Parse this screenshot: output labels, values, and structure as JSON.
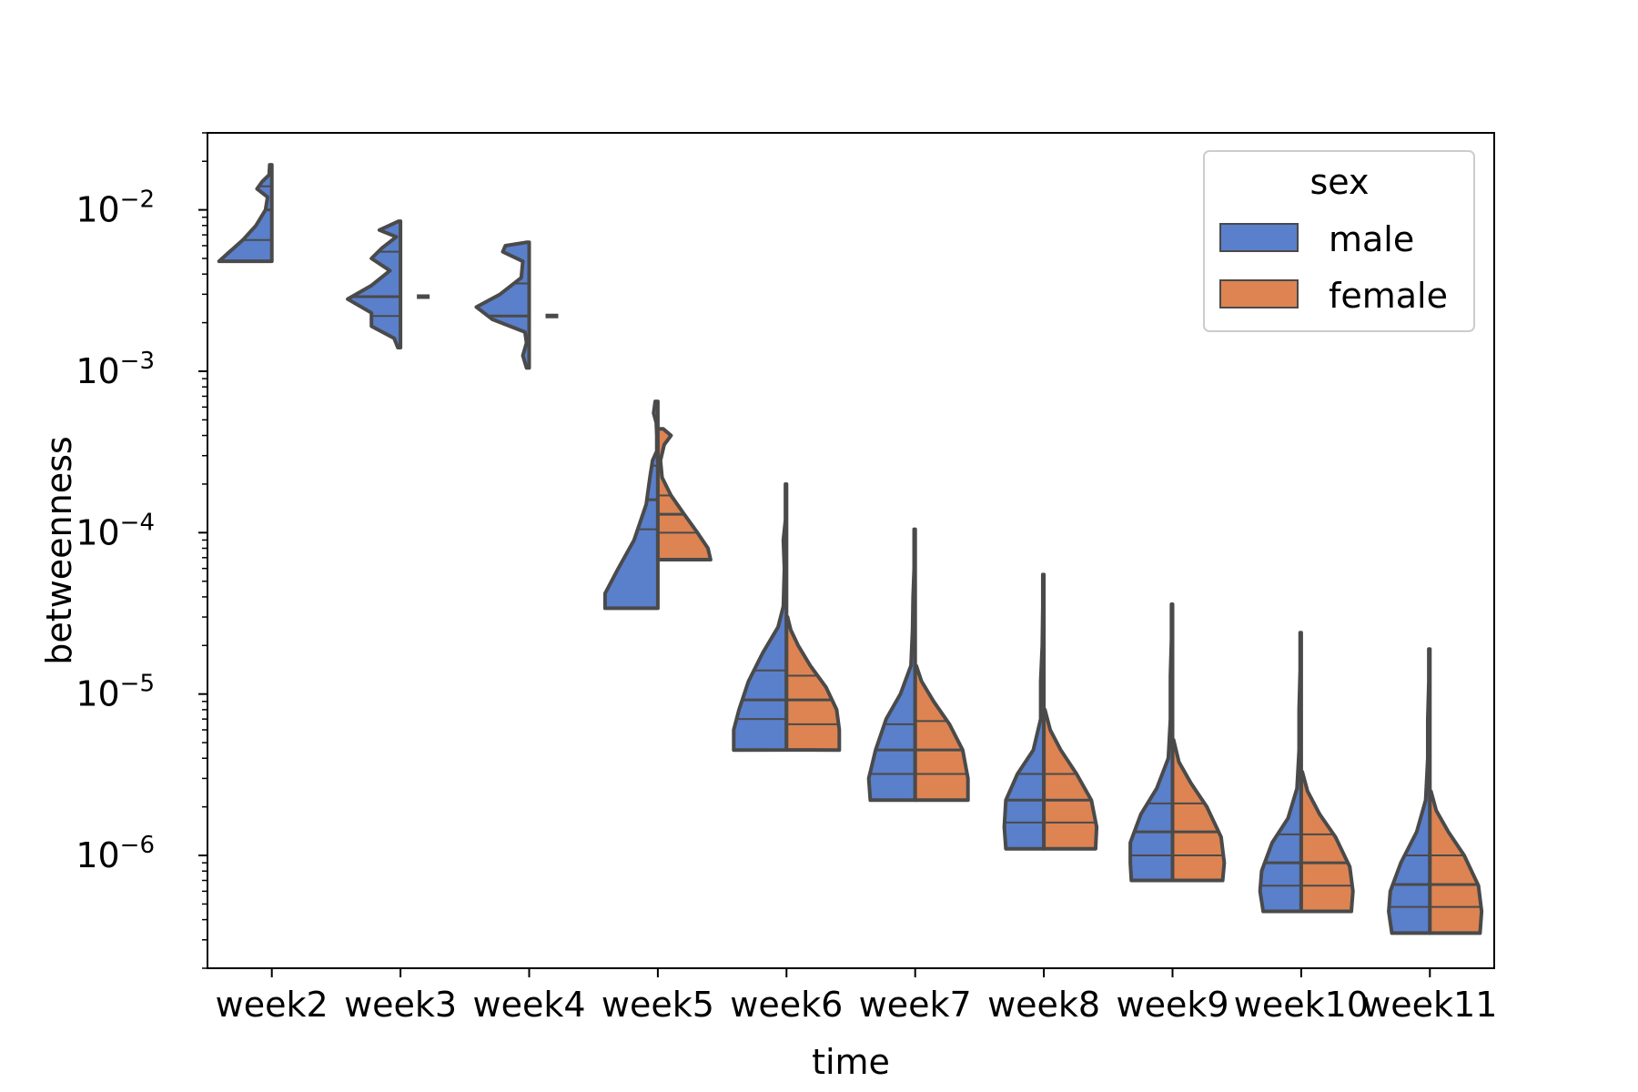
{
  "chart_data": {
    "type": "violin",
    "split": true,
    "inner": "quartile",
    "xlabel": "time",
    "ylabel": "betweenness",
    "yscale": "log",
    "ylim": [
      2e-07,
      0.03
    ],
    "categories": [
      "week2",
      "week3",
      "week4",
      "week5",
      "week6",
      "week7",
      "week8",
      "week9",
      "week10",
      "week11"
    ],
    "y_ticks": [
      {
        "base": "10",
        "exp": "−2",
        "value": 0.01
      },
      {
        "base": "10",
        "exp": "−3",
        "value": 0.001
      },
      {
        "base": "10",
        "exp": "−4",
        "value": 0.0001
      },
      {
        "base": "10",
        "exp": "−5",
        "value": 1e-05
      },
      {
        "base": "10",
        "exp": "−6",
        "value": 1e-06
      }
    ],
    "legend": {
      "title": "sex",
      "placement": "top-right"
    },
    "series": [
      {
        "name": "male",
        "color": "#5a7fcb",
        "violins": [
          {
            "min": 0.0048,
            "max": 0.019,
            "q1": 0.0065,
            "median": 0.01,
            "q3": 0.014,
            "shape": [
              [
                0.0048,
                1.0
              ],
              [
                0.0055,
                0.8
              ],
              [
                0.0065,
                0.55
              ],
              [
                0.008,
                0.3
              ],
              [
                0.01,
                0.12
              ],
              [
                0.012,
                0.08
              ],
              [
                0.0135,
                0.28
              ],
              [
                0.015,
                0.18
              ],
              [
                0.0165,
                0.05
              ],
              [
                0.019,
                0.04
              ]
            ]
          },
          {
            "min": 0.0014,
            "max": 0.0085,
            "q1": 0.0022,
            "median": 0.0029,
            "q3": 0.0055,
            "shape": [
              [
                0.0014,
                0.05
              ],
              [
                0.0016,
                0.12
              ],
              [
                0.0019,
                0.55
              ],
              [
                0.0023,
                0.55
              ],
              [
                0.0028,
                1.0
              ],
              [
                0.0034,
                0.55
              ],
              [
                0.0042,
                0.2
              ],
              [
                0.005,
                0.55
              ],
              [
                0.0058,
                0.35
              ],
              [
                0.0068,
                0.08
              ],
              [
                0.0075,
                0.4
              ],
              [
                0.0085,
                0.04
              ]
            ]
          },
          {
            "min": 0.00105,
            "max": 0.0063,
            "q1": 0.0016,
            "median": 0.0022,
            "q3": 0.0035,
            "shape": [
              [
                0.00105,
                0.05
              ],
              [
                0.00125,
                0.12
              ],
              [
                0.0015,
                0.05
              ],
              [
                0.00175,
                0.08
              ],
              [
                0.0021,
                0.7
              ],
              [
                0.0025,
                1.0
              ],
              [
                0.003,
                0.55
              ],
              [
                0.0038,
                0.15
              ],
              [
                0.0048,
                0.12
              ],
              [
                0.0055,
                0.5
              ],
              [
                0.006,
                0.45
              ],
              [
                0.0063,
                0.04
              ]
            ]
          },
          {
            "min": 3.4e-05,
            "max": 0.00065,
            "q1": 0.000105,
            "median": 0.00016,
            "q3": 0.00026,
            "shape": [
              [
                3.4e-05,
                1.0
              ],
              [
                4.2e-05,
                1.0
              ],
              [
                6e-05,
                0.75
              ],
              [
                9e-05,
                0.45
              ],
              [
                0.00015,
                0.22
              ],
              [
                0.00022,
                0.15
              ],
              [
                0.00028,
                0.1
              ],
              [
                0.00032,
                0.02
              ],
              [
                0.0004,
                0.02
              ],
              [
                0.00048,
                0.03
              ],
              [
                0.00055,
                0.08
              ],
              [
                0.00065,
                0.05
              ]
            ]
          },
          {
            "min": 4.5e-06,
            "max": 0.0002,
            "q1": 7e-06,
            "median": 9.2e-06,
            "q3": 1.4e-05,
            "shape": [
              [
                4.5e-06,
                1.0
              ],
              [
                6e-06,
                1.0
              ],
              [
                8e-06,
                0.9
              ],
              [
                1.2e-05,
                0.72
              ],
              [
                1.8e-05,
                0.45
              ],
              [
                2.6e-05,
                0.16
              ],
              [
                3.5e-05,
                0.06
              ],
              [
                6e-05,
                0.04
              ],
              [
                9e-05,
                0.06
              ],
              [
                0.00012,
                0.02
              ],
              [
                0.0002,
                0.02
              ]
            ]
          },
          {
            "min": 2.2e-06,
            "max": 0.000105,
            "q1": 3.2e-06,
            "median": 4.5e-06,
            "q3": 6.5e-06,
            "shape": [
              [
                2.2e-06,
                0.85
              ],
              [
                3e-06,
                0.88
              ],
              [
                4.5e-06,
                0.75
              ],
              [
                7e-06,
                0.55
              ],
              [
                1e-05,
                0.28
              ],
              [
                1.5e-05,
                0.08
              ],
              [
                2.5e-05,
                0.05
              ],
              [
                4e-05,
                0.04
              ],
              [
                6e-05,
                0.02
              ],
              [
                0.000105,
                0.02
              ]
            ]
          },
          {
            "min": 1.1e-06,
            "max": 5.5e-05,
            "q1": 1.6e-06,
            "median": 2.2e-06,
            "q3": 3.2e-06,
            "shape": [
              [
                1.1e-06,
                0.72
              ],
              [
                1.5e-06,
                0.75
              ],
              [
                2.2e-06,
                0.72
              ],
              [
                3.2e-06,
                0.5
              ],
              [
                4.5e-06,
                0.2
              ],
              [
                7e-06,
                0.06
              ],
              [
                1.2e-05,
                0.06
              ],
              [
                2e-05,
                0.03
              ],
              [
                3.5e-05,
                0.02
              ],
              [
                5.5e-05,
                0.02
              ]
            ]
          },
          {
            "min": 7e-07,
            "max": 3.6e-05,
            "q1": 1e-06,
            "median": 1.4e-06,
            "q3": 2.1e-06,
            "shape": [
              [
                7e-07,
                0.78
              ],
              [
                9e-07,
                0.8
              ],
              [
                1.2e-06,
                0.8
              ],
              [
                1.8e-06,
                0.6
              ],
              [
                2.6e-06,
                0.3
              ],
              [
                4e-06,
                0.08
              ],
              [
                7e-06,
                0.04
              ],
              [
                1.3e-05,
                0.04
              ],
              [
                2.2e-05,
                0.02
              ],
              [
                3.6e-05,
                0.02
              ]
            ]
          },
          {
            "min": 4.5e-07,
            "max": 2.4e-05,
            "q1": 6.5e-07,
            "median": 9e-07,
            "q3": 1.35e-06,
            "shape": [
              [
                4.5e-07,
                0.72
              ],
              [
                6e-07,
                0.78
              ],
              [
                8e-07,
                0.75
              ],
              [
                1.2e-06,
                0.55
              ],
              [
                1.7e-06,
                0.25
              ],
              [
                2.6e-06,
                0.08
              ],
              [
                4.5e-06,
                0.04
              ],
              [
                8e-06,
                0.04
              ],
              [
                1.4e-05,
                0.02
              ],
              [
                2.4e-05,
                0.02
              ]
            ]
          },
          {
            "min": 3.3e-07,
            "max": 1.9e-05,
            "q1": 4.8e-07,
            "median": 6.6e-07,
            "q3": 1e-06,
            "shape": [
              [
                3.3e-07,
                0.72
              ],
              [
                4.5e-07,
                0.78
              ],
              [
                6e-07,
                0.75
              ],
              [
                9e-07,
                0.55
              ],
              [
                1.4e-06,
                0.25
              ],
              [
                2.2e-06,
                0.08
              ],
              [
                4e-06,
                0.04
              ],
              [
                7e-06,
                0.04
              ],
              [
                1.2e-05,
                0.02
              ],
              [
                1.9e-05,
                0.02
              ]
            ]
          }
        ]
      },
      {
        "name": "female",
        "color": "#dd8452",
        "violins": [
          null,
          {
            "min": 0.0029,
            "max": 0.0029,
            "q1": 0.0029,
            "median": 0.0029,
            "q3": 0.0029,
            "shape": []
          },
          {
            "min": 0.0022,
            "max": 0.0022,
            "q1": 0.0022,
            "median": 0.0022,
            "q3": 0.0022,
            "shape": []
          },
          {
            "min": 6.8e-05,
            "max": 0.00044,
            "q1": 0.0001,
            "median": 0.00013,
            "q3": 0.00017,
            "shape": [
              [
                6.8e-05,
                1.0
              ],
              [
                8e-05,
                0.95
              ],
              [
                0.0001,
                0.75
              ],
              [
                0.00013,
                0.5
              ],
              [
                0.00017,
                0.25
              ],
              [
                0.00022,
                0.08
              ],
              [
                0.00028,
                0.05
              ],
              [
                0.00035,
                0.12
              ],
              [
                0.0004,
                0.25
              ],
              [
                0.00044,
                0.1
              ]
            ]
          },
          {
            "min": 4.5e-06,
            "max": 3e-05,
            "q1": 6.5e-06,
            "median": 9.2e-06,
            "q3": 1.3e-05,
            "shape": [
              [
                4.5e-06,
                1.0
              ],
              [
                6e-06,
                1.0
              ],
              [
                8e-06,
                0.95
              ],
              [
                1.1e-05,
                0.75
              ],
              [
                1.5e-05,
                0.45
              ],
              [
                2e-05,
                0.22
              ],
              [
                2.5e-05,
                0.08
              ],
              [
                3e-05,
                0.02
              ]
            ]
          },
          {
            "min": 2.2e-06,
            "max": 1.5e-05,
            "q1": 3.2e-06,
            "median": 4.5e-06,
            "q3": 6.8e-06,
            "shape": [
              [
                2.2e-06,
                1.0
              ],
              [
                3e-06,
                1.0
              ],
              [
                4.5e-06,
                0.9
              ],
              [
                6.5e-06,
                0.65
              ],
              [
                9e-06,
                0.35
              ],
              [
                1.2e-05,
                0.12
              ],
              [
                1.5e-05,
                0.02
              ]
            ]
          },
          {
            "min": 1.1e-06,
            "max": 8e-06,
            "q1": 1.6e-06,
            "median": 2.2e-06,
            "q3": 3.2e-06,
            "shape": [
              [
                1.1e-06,
                0.98
              ],
              [
                1.5e-06,
                1.0
              ],
              [
                2.2e-06,
                0.9
              ],
              [
                3.2e-06,
                0.62
              ],
              [
                4.5e-06,
                0.32
              ],
              [
                6e-06,
                0.12
              ],
              [
                8e-06,
                0.02
              ]
            ]
          },
          {
            "min": 7e-07,
            "max": 5.2e-06,
            "q1": 1e-06,
            "median": 1.4e-06,
            "q3": 2.1e-06,
            "shape": [
              [
                7e-07,
                0.95
              ],
              [
                9e-07,
                0.98
              ],
              [
                1.3e-06,
                0.92
              ],
              [
                2e-06,
                0.65
              ],
              [
                2.8e-06,
                0.35
              ],
              [
                3.8e-06,
                0.12
              ],
              [
                5.2e-06,
                0.02
              ]
            ]
          },
          {
            "min": 4.5e-07,
            "max": 3.3e-06,
            "q1": 6.5e-07,
            "median": 9e-07,
            "q3": 1.35e-06,
            "shape": [
              [
                4.5e-07,
                0.95
              ],
              [
                6e-07,
                0.98
              ],
              [
                8.5e-07,
                0.92
              ],
              [
                1.3e-06,
                0.65
              ],
              [
                1.8e-06,
                0.35
              ],
              [
                2.5e-06,
                0.12
              ],
              [
                3.3e-06,
                0.02
              ]
            ]
          },
          {
            "min": 3.3e-07,
            "max": 2.5e-06,
            "q1": 4.8e-07,
            "median": 6.6e-07,
            "q3": 1e-06,
            "shape": [
              [
                3.3e-07,
                0.95
              ],
              [
                4.5e-07,
                0.98
              ],
              [
                6.5e-07,
                0.92
              ],
              [
                1e-06,
                0.65
              ],
              [
                1.4e-06,
                0.35
              ],
              [
                1.9e-06,
                0.12
              ],
              [
                2.5e-06,
                0.02
              ]
            ]
          }
        ]
      }
    ]
  }
}
